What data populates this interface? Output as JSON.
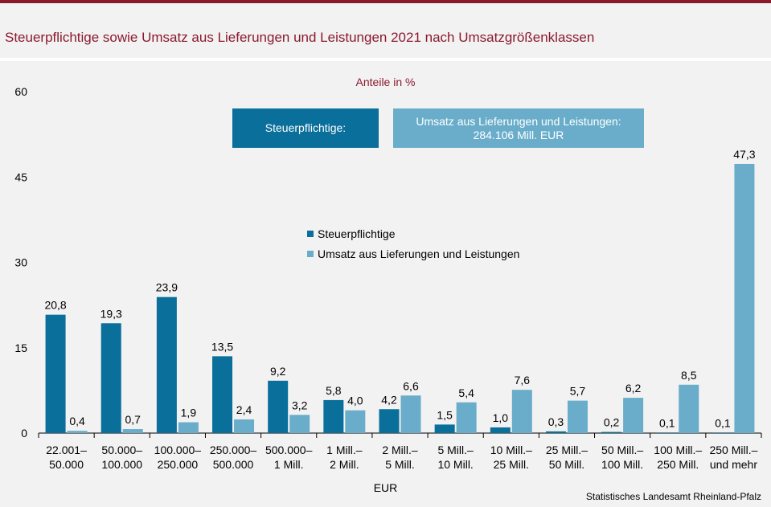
{
  "title": "Steuerpflichtige sowie Umsatz aus Lieferungen und Leistungen 2021 nach Umsatzgrößenklassen",
  "subtitle": "Anteile in %",
  "boxes": {
    "steuerpflichtige": "Steuerpflichtige:",
    "umsatz_line1": "Umsatz aus Lieferungen und Leistungen:",
    "umsatz_line2": "284.106  Mill. EUR"
  },
  "x_unit": "EUR",
  "source": "Statistisches Landesamt Rheinland-Pfalz",
  "colors": {
    "series1": "#0a6f9a",
    "series2": "#6aadca",
    "accent": "#8b1a2e"
  },
  "chart_data": {
    "type": "bar",
    "title": "Steuerpflichtige sowie Umsatz aus Lieferungen und Leistungen 2021 nach Umsatzgrößenklassen",
    "ylabel": "Anteile in %",
    "xlabel": "EUR",
    "ylim": [
      0,
      60
    ],
    "yticks": [
      0,
      15,
      30,
      45,
      60
    ],
    "legend": "center",
    "categories": [
      [
        "22.001–",
        "50.000"
      ],
      [
        "50.000–",
        "100.000"
      ],
      [
        "100.000–",
        "250.000"
      ],
      [
        "250.000–",
        "500.000"
      ],
      [
        "500.000–",
        "1 Mill."
      ],
      [
        "1 Mill.–",
        "2 Mill."
      ],
      [
        "2 Mill.–",
        "5 Mill."
      ],
      [
        "5 Mill.–",
        "10 Mill."
      ],
      [
        "10 Mill.–",
        "25 Mill."
      ],
      [
        "25 Mill.–",
        "50 Mill."
      ],
      [
        "50 Mill.–",
        "100 Mill."
      ],
      [
        "100 Mill.–",
        "250 Mill."
      ],
      [
        "250 Mill.–",
        "und mehr"
      ]
    ],
    "series": [
      {
        "name": "Steuerpflichtige",
        "values": [
          20.8,
          19.3,
          23.9,
          13.5,
          9.2,
          5.8,
          4.2,
          1.5,
          1.0,
          0.3,
          0.2,
          0.1,
          0.1
        ],
        "labels": [
          "20,8",
          "19,3",
          "23,9",
          "13,5",
          "9,2",
          "5,8",
          "4,2",
          "1,5",
          "1,0",
          "0,3",
          "0,2",
          "0,1",
          "0,1"
        ]
      },
      {
        "name": "Umsatz aus Lieferungen und Leistungen",
        "values": [
          0.4,
          0.7,
          1.9,
          2.4,
          3.2,
          4.0,
          6.6,
          5.4,
          7.6,
          5.7,
          6.2,
          8.5,
          47.3
        ],
        "labels": [
          "0,4",
          "0,7",
          "1,9",
          "2,4",
          "3,2",
          "4,0",
          "6,6",
          "5,4",
          "7,6",
          "5,7",
          "6,2",
          "8,5",
          "47,3"
        ]
      }
    ]
  }
}
